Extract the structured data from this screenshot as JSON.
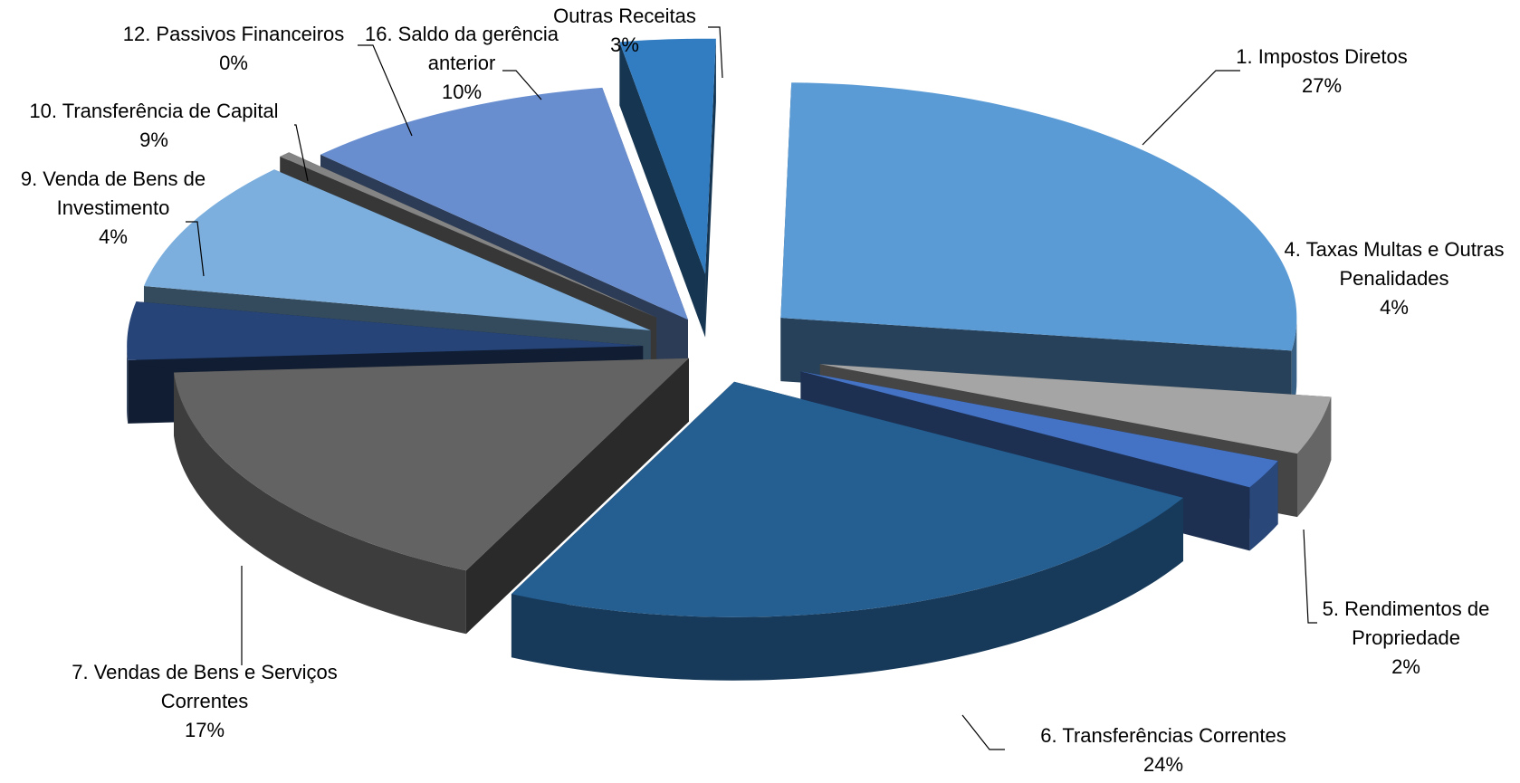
{
  "chart_data": {
    "type": "pie",
    "title": "",
    "style": "3d-exploded",
    "slices": [
      {
        "name": "1. Impostos Diretos",
        "label_lines": [
          "1. Impostos Diretos"
        ],
        "value": 27,
        "value_label": "27%",
        "color": "#5b9bd5"
      },
      {
        "name": "4. Taxas Multas e Outras Penalidades",
        "label_lines": [
          "4. Taxas Multas e Outras",
          "Penalidades"
        ],
        "value": 4,
        "value_label": "4%",
        "color": "#a5a5a5"
      },
      {
        "name": "5. Rendimentos de Propriedade",
        "label_lines": [
          "5. Rendimentos de",
          "Propriedade"
        ],
        "value": 2,
        "value_label": "2%",
        "color": "#4472c4"
      },
      {
        "name": "6. Transferências Correntes",
        "label_lines": [
          "6. Transferências Correntes"
        ],
        "value": 24,
        "value_label": "24%",
        "color": "#255e91"
      },
      {
        "name": "7. Vendas de Bens e Serviços Correntes",
        "label_lines": [
          "7. Vendas de Bens e Serviços",
          "Correntes"
        ],
        "value": 17,
        "value_label": "17%",
        "color": "#636363"
      },
      {
        "name": "9. Venda de Bens de Investimento",
        "label_lines": [
          "9. Venda de Bens de",
          "Investimento"
        ],
        "value": 4,
        "value_label": "4%",
        "color": "#264478"
      },
      {
        "name": "10. Transferência de Capital",
        "label_lines": [
          "10. Transferência de Capital"
        ],
        "value": 9,
        "value_label": "9%",
        "color": "#7cafdd"
      },
      {
        "name": "12. Passivos Financeiros",
        "label_lines": [
          "12. Passivos Financeiros"
        ],
        "value": 0.4,
        "value_label": "0%",
        "color": "#848484"
      },
      {
        "name": "16. Saldo da gerência anterior",
        "label_lines": [
          "16. Saldo da gerência",
          "anterior"
        ],
        "value": 10,
        "value_label": "10%",
        "color": "#698ed0"
      },
      {
        "name": "Outras Receitas",
        "label_lines": [
          "Outras Receitas"
        ],
        "value": 3,
        "value_label": "3%",
        "color": "#327dc2"
      }
    ],
    "legend": "none",
    "data_labels": "outside-with-leader-lines"
  }
}
